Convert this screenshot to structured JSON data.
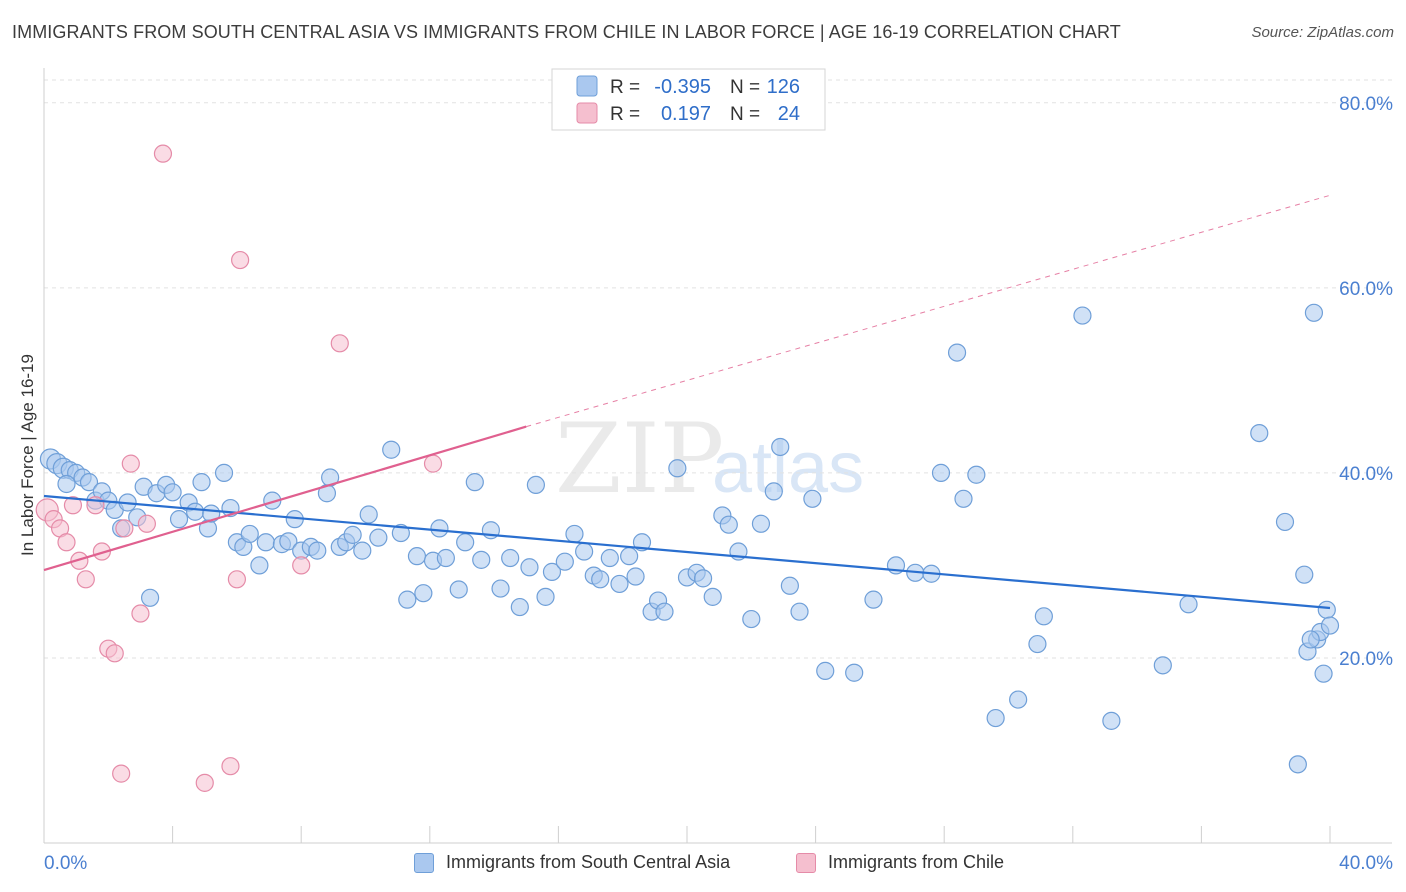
{
  "title": "IMMIGRANTS FROM SOUTH CENTRAL ASIA VS IMMIGRANTS FROM CHILE IN LABOR FORCE | AGE 16-19 CORRELATION CHART",
  "source": "Source: ZipAtlas.com",
  "watermark": {
    "zip": "ZIP",
    "atlas": "atlas"
  },
  "legend_top": [
    {
      "r_label": "R =",
      "r_value": "-0.395",
      "n_label": "N =",
      "n_value": "126"
    },
    {
      "r_label": "R =",
      "r_value": "0.197",
      "n_label": "N =",
      "n_value": "24"
    }
  ],
  "chart_data": {
    "type": "scatter",
    "title": "IMMIGRANTS FROM SOUTH CENTRAL ASIA VS IMMIGRANTS FROM CHILE IN LABOR FORCE | AGE 16-19 CORRELATION CHART",
    "xlabel": "",
    "ylabel": "In Labor Force | Age 16-19",
    "xlim": [
      0,
      40
    ],
    "ylim": [
      0,
      83
    ],
    "x_tick_labels": [
      "0.0%",
      "40.0%"
    ],
    "y_ticks": [
      20,
      40,
      60,
      80
    ],
    "y_tick_labels": [
      "20.0%",
      "40.0%",
      "60.0%",
      "80.0%"
    ],
    "grid": true,
    "colors": {
      "blue_fill": "#aac8ef",
      "blue_stroke": "#6f9fd8",
      "blue_line": "#2a6fcf",
      "pink_fill": "#f5bfcf",
      "pink_stroke": "#e58ba8",
      "pink_line": "#e0608f",
      "tick_label": "#4a7fd0"
    },
    "series": [
      {
        "name": "Immigrants from South Central Asia",
        "r": -0.395,
        "n": 126,
        "trend": {
          "x": [
            0,
            40
          ],
          "y": [
            37.5,
            25.4
          ],
          "dashed_extension": false
        },
        "points": [
          [
            0.2,
            41.5
          ],
          [
            0.4,
            41.0
          ],
          [
            0.6,
            40.5
          ],
          [
            0.8,
            40.3
          ],
          [
            1.0,
            40.0
          ],
          [
            1.2,
            39.5
          ],
          [
            0.7,
            38.8
          ],
          [
            1.4,
            39.0
          ],
          [
            1.6,
            37.0
          ],
          [
            1.8,
            38.0
          ],
          [
            2.0,
            37.0
          ],
          [
            2.2,
            36.0
          ],
          [
            2.4,
            34.0
          ],
          [
            2.6,
            36.8
          ],
          [
            2.9,
            35.2
          ],
          [
            3.1,
            38.5
          ],
          [
            3.3,
            26.5
          ],
          [
            3.5,
            37.8
          ],
          [
            3.8,
            38.7
          ],
          [
            4.0,
            37.9
          ],
          [
            4.2,
            35.0
          ],
          [
            4.5,
            36.8
          ],
          [
            4.7,
            35.8
          ],
          [
            4.9,
            39.0
          ],
          [
            5.1,
            34.0
          ],
          [
            5.2,
            35.6
          ],
          [
            5.6,
            40.0
          ],
          [
            5.8,
            36.2
          ],
          [
            6.0,
            32.5
          ],
          [
            6.2,
            32.0
          ],
          [
            6.4,
            33.4
          ],
          [
            6.7,
            30.0
          ],
          [
            6.9,
            32.5
          ],
          [
            7.1,
            37.0
          ],
          [
            7.4,
            32.3
          ],
          [
            7.6,
            32.6
          ],
          [
            7.8,
            35.0
          ],
          [
            8.0,
            31.6
          ],
          [
            8.3,
            32.0
          ],
          [
            8.5,
            31.6
          ],
          [
            8.8,
            37.8
          ],
          [
            8.9,
            39.5
          ],
          [
            9.2,
            32.0
          ],
          [
            9.4,
            32.5
          ],
          [
            9.6,
            33.3
          ],
          [
            9.9,
            31.6
          ],
          [
            10.1,
            35.5
          ],
          [
            10.4,
            33.0
          ],
          [
            10.8,
            42.5
          ],
          [
            11.1,
            33.5
          ],
          [
            11.3,
            26.3
          ],
          [
            11.6,
            31.0
          ],
          [
            11.8,
            27.0
          ],
          [
            12.1,
            30.5
          ],
          [
            12.3,
            34.0
          ],
          [
            12.5,
            30.8
          ],
          [
            12.9,
            27.4
          ],
          [
            13.1,
            32.5
          ],
          [
            13.4,
            39.0
          ],
          [
            13.6,
            30.6
          ],
          [
            13.9,
            33.8
          ],
          [
            14.2,
            27.5
          ],
          [
            14.5,
            30.8
          ],
          [
            14.8,
            25.5
          ],
          [
            15.1,
            29.8
          ],
          [
            15.3,
            38.7
          ],
          [
            15.6,
            26.6
          ],
          [
            15.8,
            29.3
          ],
          [
            16.2,
            30.4
          ],
          [
            16.5,
            33.4
          ],
          [
            16.8,
            31.5
          ],
          [
            17.1,
            28.9
          ],
          [
            17.3,
            28.5
          ],
          [
            17.6,
            30.8
          ],
          [
            17.9,
            28.0
          ],
          [
            18.2,
            31.0
          ],
          [
            18.4,
            28.8
          ],
          [
            18.6,
            32.5
          ],
          [
            18.9,
            25.0
          ],
          [
            19.1,
            26.2
          ],
          [
            19.3,
            25.0
          ],
          [
            19.7,
            40.5
          ],
          [
            20.0,
            28.7
          ],
          [
            20.3,
            29.2
          ],
          [
            20.5,
            28.6
          ],
          [
            20.8,
            26.6
          ],
          [
            21.1,
            35.4
          ],
          [
            21.3,
            34.4
          ],
          [
            21.6,
            31.5
          ],
          [
            22.0,
            24.2
          ],
          [
            22.3,
            34.5
          ],
          [
            22.7,
            38.0
          ],
          [
            22.9,
            42.8
          ],
          [
            23.2,
            27.8
          ],
          [
            23.5,
            25.0
          ],
          [
            23.9,
            37.2
          ],
          [
            24.3,
            18.6
          ],
          [
            25.2,
            18.4
          ],
          [
            25.8,
            26.3
          ],
          [
            26.5,
            30.0
          ],
          [
            27.1,
            29.2
          ],
          [
            27.6,
            29.1
          ],
          [
            27.9,
            40.0
          ],
          [
            28.4,
            53.0
          ],
          [
            28.6,
            37.2
          ],
          [
            29.0,
            39.8
          ],
          [
            29.6,
            13.5
          ],
          [
            30.3,
            15.5
          ],
          [
            30.9,
            21.5
          ],
          [
            31.1,
            24.5
          ],
          [
            32.3,
            57.0
          ],
          [
            33.2,
            13.2
          ],
          [
            34.8,
            19.2
          ],
          [
            35.6,
            25.8
          ],
          [
            37.8,
            44.3
          ],
          [
            38.6,
            34.7
          ],
          [
            39.3,
            20.7
          ],
          [
            39.5,
            57.3
          ],
          [
            39.0,
            8.5
          ],
          [
            39.8,
            18.3
          ],
          [
            39.2,
            29.0
          ],
          [
            39.6,
            22.0
          ],
          [
            39.7,
            22.8
          ],
          [
            39.9,
            25.2
          ],
          [
            40.0,
            23.5
          ],
          [
            39.4,
            22.0
          ]
        ]
      },
      {
        "name": "Immigrants from Chile",
        "r": 0.197,
        "n": 24,
        "trend": {
          "x": [
            0,
            15
          ],
          "y": [
            29.5,
            45.0
          ],
          "dashed_extension": true,
          "dashed_to": {
            "x": 40,
            "y": 70.0
          }
        },
        "points": [
          [
            0.1,
            36.0
          ],
          [
            0.3,
            35.0
          ],
          [
            0.5,
            34.0
          ],
          [
            0.7,
            32.5
          ],
          [
            0.9,
            36.5
          ],
          [
            1.1,
            30.5
          ],
          [
            1.3,
            28.5
          ],
          [
            1.6,
            36.5
          ],
          [
            1.8,
            31.5
          ],
          [
            2.0,
            21.0
          ],
          [
            2.2,
            20.5
          ],
          [
            2.4,
            7.5
          ],
          [
            2.5,
            34.0
          ],
          [
            2.7,
            41.0
          ],
          [
            3.0,
            24.8
          ],
          [
            3.2,
            34.5
          ],
          [
            3.7,
            74.5
          ],
          [
            5.0,
            6.5
          ],
          [
            5.8,
            8.3
          ],
          [
            6.0,
            28.5
          ],
          [
            6.1,
            63.0
          ],
          [
            8.0,
            30.0
          ],
          [
            9.2,
            54.0
          ],
          [
            12.1,
            41.0
          ]
        ]
      }
    ]
  }
}
